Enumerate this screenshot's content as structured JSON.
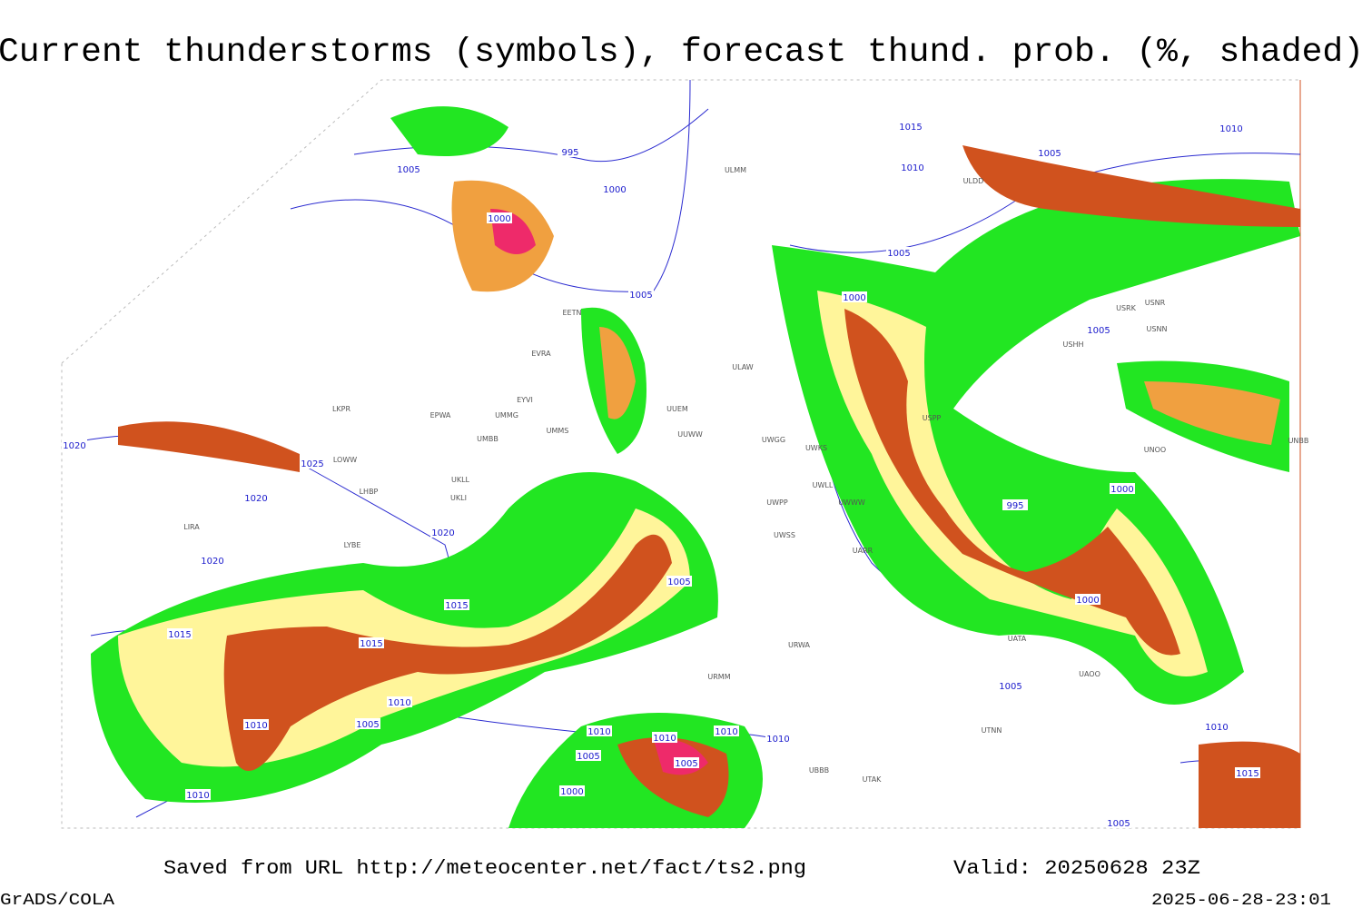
{
  "header": {
    "title": "Current thunderstorms (symbols), forecast thund. prob. (%, shaded)"
  },
  "footer": {
    "source": "Saved from URL http://meteocenter.net/fact/ts2.png",
    "valid": "Valid: 20250628 23Z",
    "software": "GrADS/COLA",
    "timestamp": "2025-06-28-23:01"
  },
  "isobars": [
    "995",
    "1005",
    "1000",
    "1000",
    "1005",
    "1015",
    "1010",
    "1005",
    "1010",
    "1005",
    "1000",
    "1005",
    "1020",
    "1025",
    "1020",
    "1020",
    "1020",
    "1000",
    "995",
    "1005",
    "1015",
    "1015",
    "1015",
    "1000",
    "1010",
    "1010",
    "1005",
    "1005",
    "1010",
    "1010",
    "1010",
    "1010",
    "1005",
    "1005",
    "1010",
    "1010",
    "1000",
    "1015",
    "1005"
  ],
  "stations": [
    "ULMM",
    "ULDD",
    "EETN",
    "EVRA",
    "ULAW",
    "EYVI",
    "UMMG",
    "LKPR",
    "EPWA",
    "UUEM",
    "UMMS",
    "UUWW",
    "UMBB",
    "UWGG",
    "UWKS",
    "LOWW",
    "USPP",
    "UKLL",
    "UKLI",
    "LHBP",
    "UWLL",
    "UWWW",
    "UWPP",
    "LIRA",
    "LYBE",
    "UWSS",
    "UARR",
    "USNR",
    "USRK",
    "USNN",
    "USHH",
    "UNOO",
    "UNBB",
    "UATA",
    "UAOO",
    "UTNN",
    "UBBB",
    "UTAK",
    "URMM",
    "URWA"
  ]
}
